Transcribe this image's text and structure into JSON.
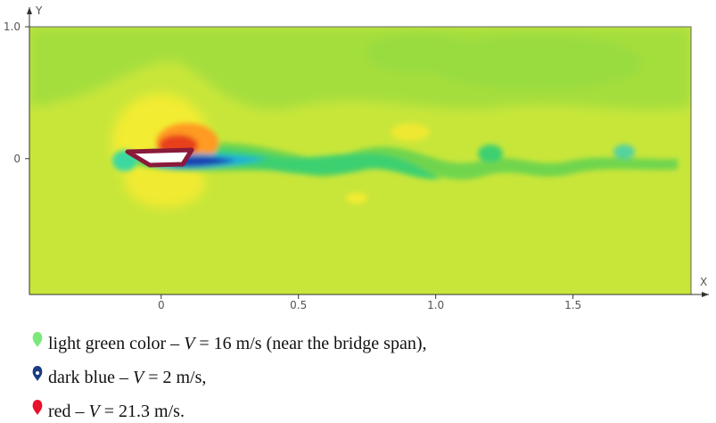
{
  "plot": {
    "xlabel": "X",
    "ylabel": "Y",
    "xlim": [
      -0.48,
      1.93
    ],
    "ylim": [
      -1.03,
      1.0
    ],
    "xticks": [
      0,
      0.5,
      {
        "value": 1,
        "label": "1.0"
      },
      1.5
    ],
    "yticks": [
      {
        "value": 1,
        "label": "1.0"
      },
      0
    ]
  },
  "legend": [
    {
      "text": "light green color – ",
      "var": "V",
      "rest": " = 16 m/s (near the bridge span),"
    },
    {
      "text": "dark blue – ",
      "var": "V",
      "rest": " = 2 m/s,"
    },
    {
      "text": "red – ",
      "var": "V",
      "rest": " = 21.3 m/s."
    }
  ]
}
